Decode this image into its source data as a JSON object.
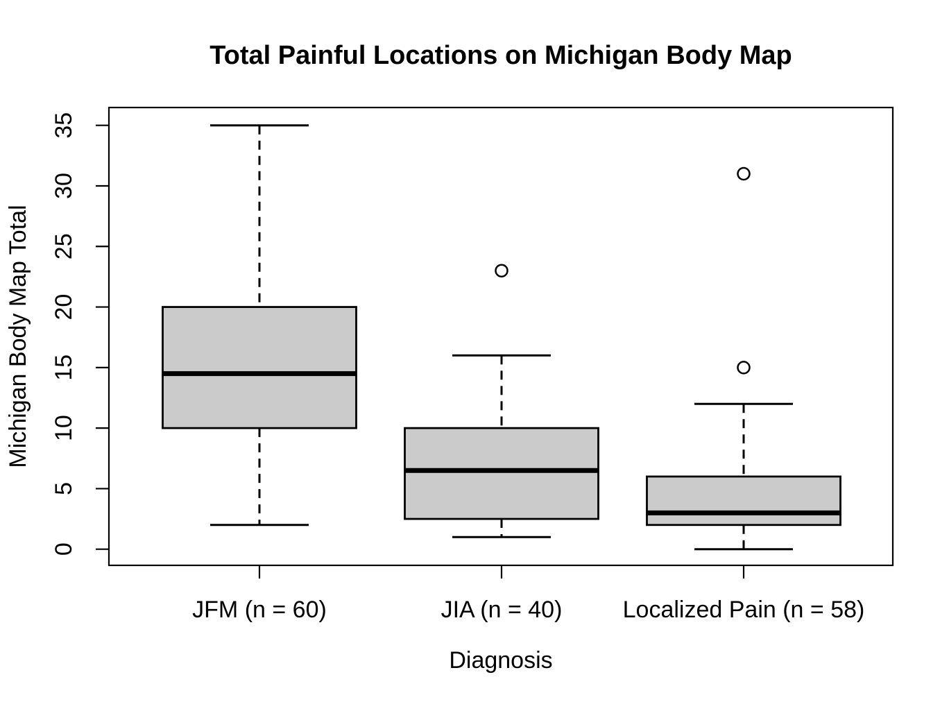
{
  "chart_data": {
    "type": "boxplot",
    "title": "Total Painful Locations on Michigan Body Map",
    "xlabel": "Diagnosis",
    "ylabel": "Michigan Body Map Total",
    "ylim": [
      0,
      35
    ],
    "yticks": [
      0,
      5,
      10,
      15,
      20,
      25,
      30,
      35
    ],
    "grid": false,
    "legend": "none",
    "groups": [
      {
        "label": "JFM (n = 60)",
        "n": 60,
        "whisker_low": 2,
        "q1": 10,
        "median": 14.5,
        "q3": 20,
        "whisker_high": 35,
        "outliers": []
      },
      {
        "label": "JIA (n = 40)",
        "n": 40,
        "whisker_low": 1,
        "q1": 2.5,
        "median": 6.5,
        "q3": 10,
        "whisker_high": 16,
        "outliers": [
          23
        ]
      },
      {
        "label": "Localized Pain (n = 58)",
        "n": 58,
        "whisker_low": 0,
        "q1": 2,
        "median": 3,
        "q3": 6,
        "whisker_high": 12,
        "outliers": [
          15,
          31
        ]
      }
    ],
    "style": {
      "box_fill": "#cbcbcb",
      "line_color": "#000000",
      "background": "#ffffff"
    }
  }
}
